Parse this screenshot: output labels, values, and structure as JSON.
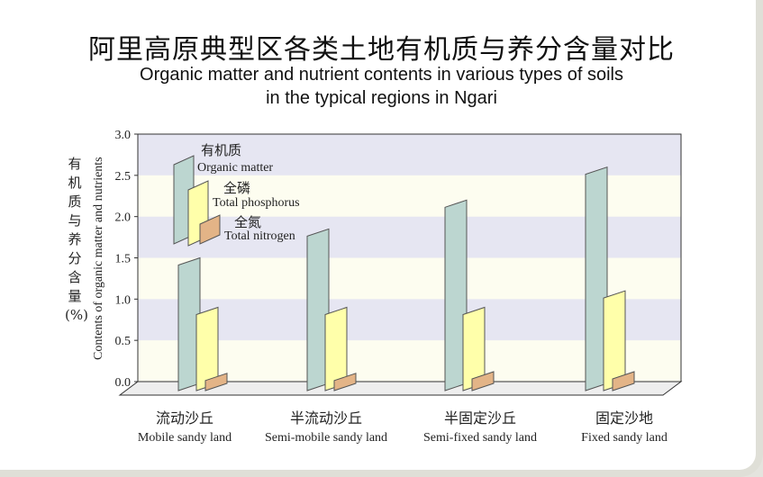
{
  "title_cn": "阿里高原典型区各类土地有机质与养分含量对比",
  "title_en_line1": "Organic matter and nutrient contents in various types of soils",
  "title_en_line2": "in the typical regions in Ngari",
  "chart_data": {
    "type": "bar",
    "ylabel_cn": "有机质与养分含量(%)",
    "ylabel_en": "Contents of organic matter and nutrients",
    "ylim": [
      0,
      3.0
    ],
    "yticks": [
      "0.0",
      "0.5",
      "1.0",
      "1.5",
      "2.0",
      "2.5",
      "3.0"
    ],
    "categories_cn": [
      "流动沙丘",
      "半流动沙丘",
      "半固定沙丘",
      "固定沙地"
    ],
    "categories_en": [
      "Mobile sandy land",
      "Semi-mobile sandy land",
      "Semi-fixed sandy land",
      "Fixed sandy land"
    ],
    "series": [
      {
        "name_cn": "有机质",
        "name_en": "Organic matter",
        "color": "#bcd6d0",
        "values": [
          1.5,
          1.85,
          2.2,
          2.6
        ]
      },
      {
        "name_cn": "全磷",
        "name_en": "Total phosphorus",
        "color": "#ffffaa",
        "values": [
          0.9,
          0.9,
          0.9,
          1.1
        ]
      },
      {
        "name_cn": "全氮",
        "name_en": "Total nitrogen",
        "color": "#e3b487",
        "values": [
          0.1,
          0.1,
          0.12,
          0.12
        ]
      }
    ]
  }
}
